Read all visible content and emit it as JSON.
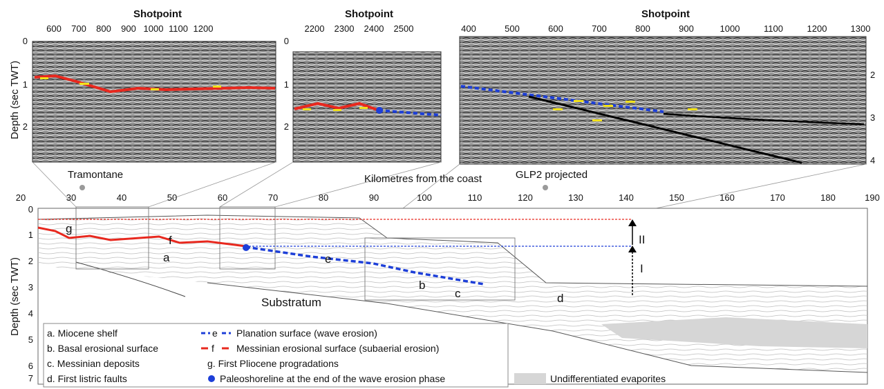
{
  "panels": [
    {
      "title": "Shotpoint",
      "x_ticks": [
        "600",
        "700",
        "800",
        "900",
        "1000",
        "1100",
        "1200"
      ],
      "y_ticks_left": [
        "0",
        "1",
        "2"
      ],
      "y_ticks_right": []
    },
    {
      "title": "Shotpoint",
      "x_ticks": [
        "2200",
        "2300",
        "2400",
        "2500"
      ],
      "y_ticks_left": [
        "0",
        "1",
        "2"
      ],
      "y_ticks_right": []
    },
    {
      "title": "Shotpoint",
      "x_ticks": [
        "400",
        "500",
        "600",
        "700",
        "800",
        "900",
        "1000",
        "1100",
        "1200",
        "1300"
      ],
      "y_ticks_left": [],
      "y_ticks_right": [
        "2",
        "3",
        "4"
      ]
    }
  ],
  "upper_ylabel": "Depth (sec TWT)",
  "lower": {
    "xlabel": "Kilometres from the coast",
    "ylabel": "Depth (sec TWT)",
    "x_ticks": [
      "20",
      "30",
      "40",
      "50",
      "60",
      "70",
      "80",
      "90",
      "100",
      "110",
      "120",
      "130",
      "140",
      "150",
      "160",
      "170",
      "180",
      "190"
    ],
    "y_ticks": [
      "0",
      "1",
      "2",
      "3",
      "4",
      "5",
      "6",
      "7"
    ],
    "wells": [
      "Tramontane",
      "GLP2 projected"
    ],
    "labels": {
      "a": "a",
      "b": "b",
      "c": "c",
      "d": "d",
      "e": "e",
      "f": "f",
      "g": "g",
      "I": "I",
      "II": "II",
      "substratum": "Substratum"
    }
  },
  "legend": {
    "a": "a. Miocene shelf",
    "b": "b. Basal erosional surface",
    "c": "c. Messinian deposits",
    "d": "d. First listric faults",
    "e_mark": "e",
    "e": "Planation surface (wave erosion)",
    "f_mark": "f",
    "f": "Messinian erosional surface (subaerial erosion)",
    "g": "g.  First Pliocene progradations",
    "dot": "Paleoshoreline at the end of the wave erosion phase",
    "evap": "Undifferentiated evaporites"
  },
  "colors": {
    "red": "#e8281e",
    "blue": "#1d3fd8",
    "yellow": "#f2e21a",
    "evap": "#d6d6d6"
  },
  "icons": [
    "paleoshoreline-dot-icon",
    "arrow-up-icon"
  ]
}
